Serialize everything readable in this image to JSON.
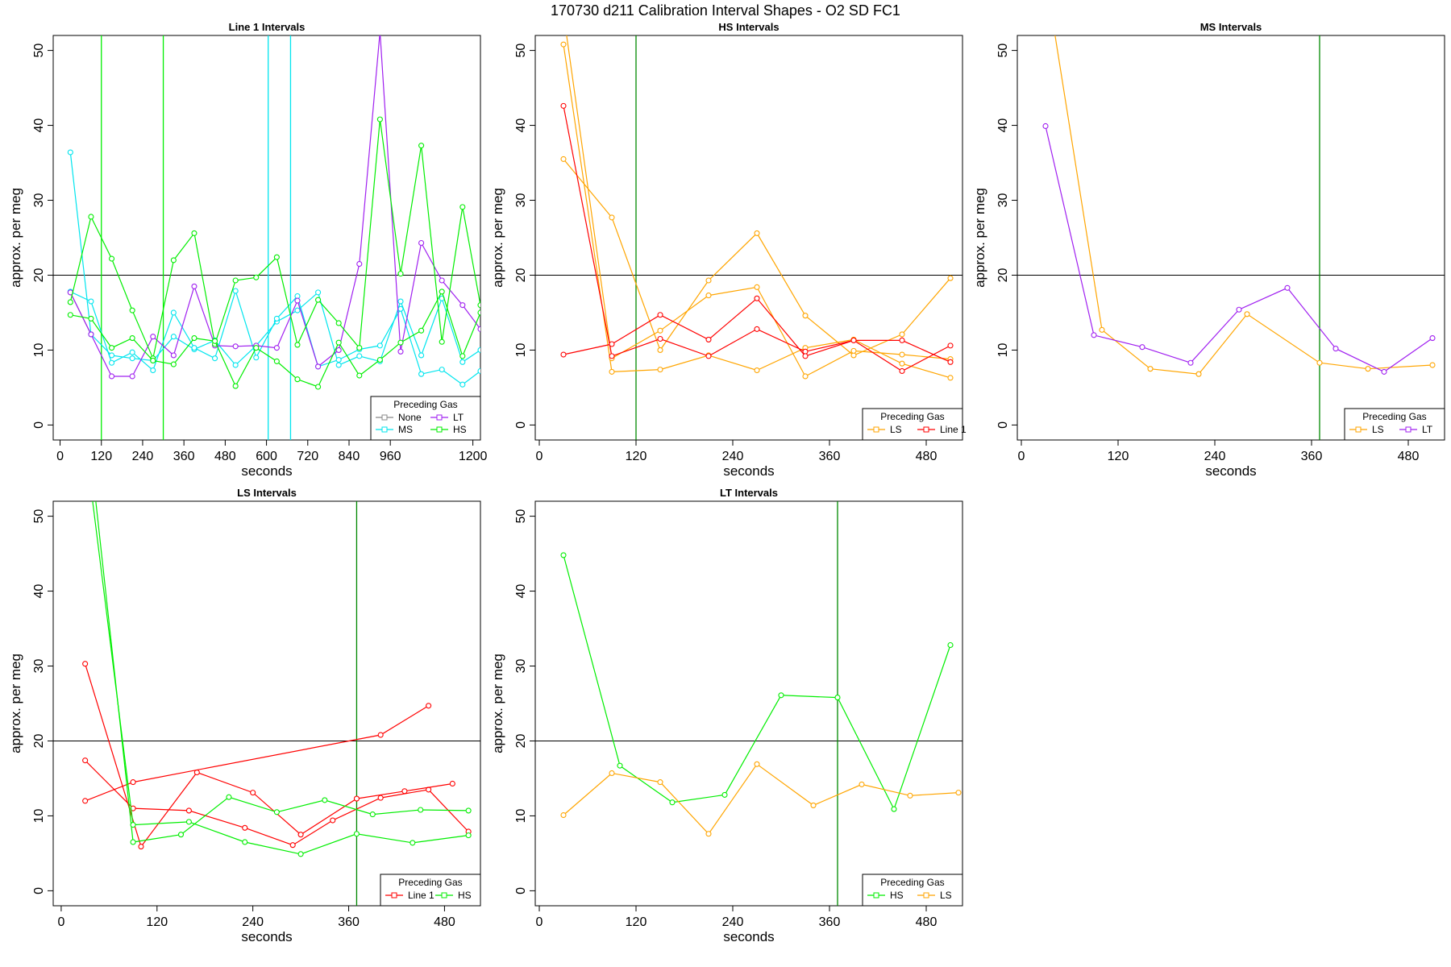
{
  "title": "170730   d211   Calibration Interval Shapes - O2 SD FC1",
  "colors": {
    "None": "#888888",
    "LT": "#a020f0",
    "MS": "#00e5ee",
    "HS": "#00ee00",
    "LS": "#ffa500",
    "Line 1": "#ff0000",
    "vline": "#008800",
    "hline": "#000000"
  },
  "legend_title": "Preceding Gas",
  "chart_data": [
    {
      "type": "line",
      "title": "Line 1 Intervals",
      "xlabel": "seconds",
      "ylabel": "approx. per meg",
      "xlim": [
        -20,
        1222
      ],
      "ylim": [
        -2,
        52
      ],
      "xticks": [
        0,
        120,
        240,
        360,
        480,
        600,
        720,
        840,
        960,
        1200
      ],
      "yticks": [
        0,
        10,
        20,
        30,
        40,
        50
      ],
      "hline": 20,
      "vlines": [
        {
          "x": 120,
          "color": "HS"
        },
        {
          "x": 300,
          "color": "HS"
        },
        {
          "x": 605,
          "color": "MS"
        },
        {
          "x": 670,
          "color": "MS"
        }
      ],
      "legend": {
        "position": "bottom-right",
        "entries": [
          "None",
          "LT",
          "MS",
          "HS"
        ],
        "ncol": 2
      },
      "series": [
        {
          "name": "None",
          "x": [
            30,
            90
          ],
          "values": [
            17.7,
            12.1
          ]
        },
        {
          "name": "MS",
          "x": [
            30,
            90,
            150,
            210,
            270,
            330,
            390,
            450,
            510,
            570,
            630,
            690,
            750,
            810,
            870,
            930,
            990,
            1050,
            1110,
            1170,
            1222
          ],
          "values": [
            36.4,
            12.1,
            9.3,
            8.9,
            8.6,
            11.8,
            10.1,
            11.3,
            8.0,
            10.6,
            13.8,
            15.3,
            17.7,
            8.0,
            9.2,
            8.5,
            16.5,
            9.3,
            16.9,
            8.4,
            10.0
          ]
        },
        {
          "name": "MS",
          "x": [
            30,
            90,
            150,
            210,
            270,
            330,
            390,
            450,
            510,
            570,
            630,
            690,
            750,
            810,
            870,
            930,
            990,
            1050,
            1110,
            1170,
            1222
          ],
          "values": [
            17.8,
            16.5,
            8.3,
            9.7,
            7.3,
            15.0,
            10.3,
            8.9,
            17.9,
            9.0,
            14.2,
            17.2,
            7.8,
            8.7,
            10.1,
            10.6,
            15.5,
            6.8,
            7.4,
            5.4,
            7.2
          ]
        },
        {
          "name": "LT",
          "x": [
            30,
            90,
            150,
            210,
            270,
            330,
            390,
            450,
            510,
            570,
            630,
            690,
            750,
            810,
            870,
            930,
            990,
            1050,
            1110,
            1170,
            1222
          ],
          "values": [
            17.7,
            12.1,
            6.5,
            6.5,
            11.8,
            9.3,
            18.5,
            10.6,
            10.5,
            10.6,
            10.3,
            16.6,
            7.8,
            10.0,
            21.5,
            52.5,
            9.8,
            24.3,
            19.3,
            16.0,
            12.8
          ]
        },
        {
          "name": "HS",
          "x": [
            30,
            90,
            150,
            210,
            270,
            330,
            390,
            450,
            510,
            570,
            630,
            690,
            750,
            810,
            870,
            930,
            990,
            1050,
            1110,
            1170,
            1222
          ],
          "values": [
            16.4,
            27.8,
            22.2,
            15.3,
            8.9,
            22.0,
            25.6,
            10.8,
            19.3,
            19.7,
            22.4,
            10.7,
            16.7,
            13.6,
            10.3,
            40.8,
            20.2,
            37.3,
            11.1,
            29.1,
            16.0
          ]
        },
        {
          "name": "HS",
          "x": [
            30,
            90,
            150,
            210,
            270,
            330,
            390,
            450,
            510,
            570,
            630,
            690,
            750,
            810,
            870,
            930,
            990,
            1050,
            1110,
            1170,
            1222
          ],
          "values": [
            14.7,
            14.2,
            10.3,
            11.6,
            8.6,
            8.1,
            11.6,
            11.2,
            5.2,
            10.3,
            8.5,
            6.1,
            5.1,
            11.0,
            6.6,
            8.7,
            11.0,
            12.6,
            17.8,
            9.2,
            15.0
          ]
        }
      ]
    },
    {
      "type": "line",
      "title": "HS Intervals",
      "xlabel": "seconds",
      "ylabel": "approx. per meg",
      "xlim": [
        -5,
        525
      ],
      "ylim": [
        -2,
        52
      ],
      "xticks": [
        0,
        120,
        240,
        360,
        480
      ],
      "yticks": [
        0,
        10,
        20,
        30,
        40,
        50
      ],
      "hline": 20,
      "vlines": [
        {
          "x": 120,
          "color": "vline"
        }
      ],
      "legend": {
        "position": "bottom-right",
        "entries": [
          "LS",
          "Line 1"
        ],
        "ncol": 2
      },
      "series": [
        {
          "name": "LS",
          "x": [
            30,
            90,
            150,
            210,
            270,
            330,
            390,
            450,
            510
          ],
          "values": [
            35.5,
            27.7,
            10.0,
            19.3,
            25.6,
            14.6,
            9.3,
            12.1,
            19.6
          ]
        },
        {
          "name": "LS",
          "x": [
            30,
            90,
            150,
            210,
            270,
            330,
            390,
            450,
            510
          ],
          "values": [
            50.8,
            7.1,
            7.4,
            9.3,
            7.3,
            10.3,
            11.4,
            8.2,
            6.3
          ]
        },
        {
          "name": "LS",
          "x": [
            30,
            90,
            150,
            210,
            270,
            330,
            390,
            450,
            510
          ],
          "values": [
            55.0,
            8.9,
            12.6,
            17.3,
            18.4,
            6.5,
            9.9,
            9.4,
            8.8
          ]
        },
        {
          "name": "Line 1",
          "x": [
            30,
            90,
            150,
            210,
            270,
            330,
            390,
            450,
            510
          ],
          "values": [
            42.6,
            9.2,
            11.5,
            9.2,
            12.8,
            9.8,
            11.3,
            7.2,
            10.6
          ]
        },
        {
          "name": "Line 1",
          "x": [
            30,
            90,
            150,
            210,
            270,
            330,
            390,
            450,
            510
          ],
          "values": [
            9.4,
            10.8,
            14.7,
            11.4,
            16.9,
            9.2,
            11.3,
            11.3,
            8.4
          ]
        }
      ]
    },
    {
      "type": "line",
      "title": "MS Intervals",
      "xlabel": "seconds",
      "ylabel": "approx. per meg",
      "xlim": [
        -5,
        525
      ],
      "ylim": [
        -2,
        52
      ],
      "xticks": [
        0,
        120,
        240,
        360,
        480
      ],
      "yticks": [
        0,
        10,
        20,
        30,
        40,
        50
      ],
      "hline": 20,
      "vlines": [
        {
          "x": 370,
          "color": "vline"
        }
      ],
      "legend": {
        "position": "bottom-right",
        "entries": [
          "LS",
          "LT"
        ],
        "ncol": 2
      },
      "series": [
        {
          "name": "LS",
          "x": [
            30,
            100,
            160,
            220,
            280,
            370,
            430,
            510
          ],
          "values": [
            60.0,
            12.7,
            7.5,
            6.8,
            14.8,
            8.3,
            7.5,
            8.0
          ]
        },
        {
          "name": "LT",
          "x": [
            30,
            90,
            150,
            210,
            270,
            330,
            390,
            450,
            510
          ],
          "values": [
            39.9,
            12.0,
            10.4,
            8.3,
            15.4,
            18.3,
            10.2,
            7.1,
            11.6
          ]
        }
      ]
    },
    {
      "type": "line",
      "title": "LS Intervals",
      "xlabel": "seconds",
      "ylabel": "approx. per meg",
      "xlim": [
        -10,
        525
      ],
      "ylim": [
        -2,
        52
      ],
      "xticks": [
        0,
        120,
        240,
        360,
        480
      ],
      "yticks": [
        0,
        10,
        20,
        30,
        40,
        50
      ],
      "hline": 20,
      "vlines": [
        {
          "x": 370,
          "color": "vline"
        }
      ],
      "legend": {
        "position": "bottom-right",
        "entries": [
          "Line 1",
          "HS"
        ],
        "ncol": 2
      },
      "series": [
        {
          "name": "Line 1",
          "x": [
            30,
            90,
            160,
            230,
            290,
            340,
            400,
            460,
            510
          ],
          "values": [
            17.4,
            11.0,
            10.7,
            8.4,
            6.1,
            9.4,
            12.4,
            13.5,
            7.9
          ]
        },
        {
          "name": "Line 1",
          "x": [
            30,
            100,
            170,
            240,
            300,
            370,
            430,
            490
          ],
          "values": [
            30.3,
            5.9,
            15.8,
            13.1,
            7.5,
            12.3,
            13.3,
            14.3
          ]
        },
        {
          "name": "Line 1",
          "x": [
            30,
            90,
            400,
            460
          ],
          "values": [
            12.0,
            14.5,
            20.8,
            24.7
          ]
        },
        {
          "name": "HS",
          "x": [
            30,
            90,
            150,
            210,
            270,
            330,
            390,
            450,
            510
          ],
          "values": [
            65.0,
            6.5,
            7.5,
            12.5,
            10.5,
            12.1,
            10.2,
            10.8,
            10.7
          ]
        },
        {
          "name": "HS",
          "x": [
            30,
            90,
            160,
            230,
            300,
            370,
            440,
            510
          ],
          "values": [
            60.0,
            8.8,
            9.2,
            6.5,
            4.9,
            7.6,
            6.4,
            7.4
          ]
        }
      ]
    },
    {
      "type": "line",
      "title": "LT Intervals",
      "xlabel": "seconds",
      "ylabel": "approx. per meg",
      "xlim": [
        -5,
        525
      ],
      "ylim": [
        -2,
        52
      ],
      "xticks": [
        0,
        120,
        240,
        360,
        480
      ],
      "yticks": [
        0,
        10,
        20,
        30,
        40,
        50
      ],
      "hline": 20,
      "vlines": [
        {
          "x": 370,
          "color": "vline"
        }
      ],
      "legend": {
        "position": "bottom-right",
        "entries": [
          "HS",
          "LS"
        ],
        "ncol": 2
      },
      "series": [
        {
          "name": "HS",
          "x": [
            30,
            100,
            165,
            230,
            300,
            370,
            440,
            510
          ],
          "values": [
            44.8,
            16.7,
            11.8,
            12.8,
            26.1,
            25.8,
            10.9,
            32.8
          ]
        },
        {
          "name": "LS",
          "x": [
            30,
            90,
            150,
            210,
            270,
            340,
            400,
            460,
            520
          ],
          "values": [
            10.1,
            15.7,
            14.5,
            7.6,
            16.9,
            11.4,
            14.2,
            12.7,
            13.1
          ]
        }
      ]
    }
  ]
}
